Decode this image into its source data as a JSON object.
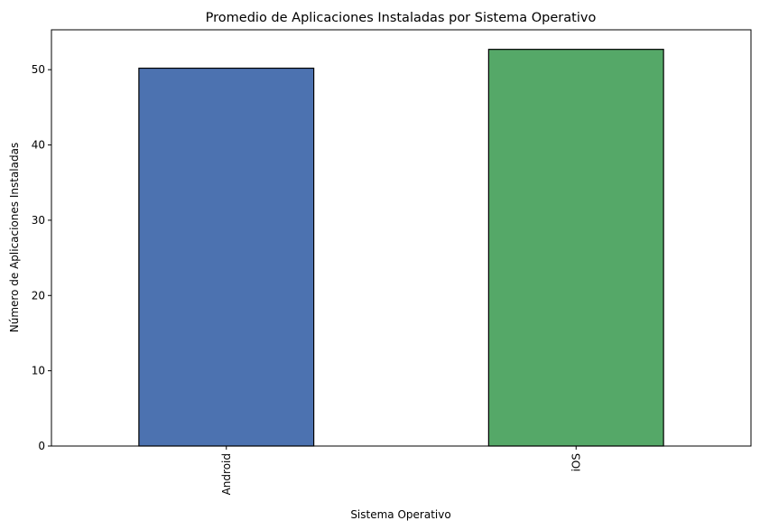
{
  "chart_data": {
    "type": "bar",
    "title": "Promedio de Aplicaciones Instaladas por Sistema Operativo",
    "xlabel": "Sistema Operativo",
    "ylabel": "Número de Aplicaciones Instaladas",
    "categories": [
      "Android",
      "iOS"
    ],
    "values": [
      50.2,
      52.7
    ],
    "bar_colors": [
      "#4c72b0",
      "#55a868"
    ],
    "bar_edge_color": "#000000",
    "ylim": [
      0,
      55.3
    ],
    "yticks": [
      0,
      10,
      20,
      30,
      40,
      50
    ],
    "x_tick_rotation": 90,
    "grid": false,
    "legend": "none"
  }
}
